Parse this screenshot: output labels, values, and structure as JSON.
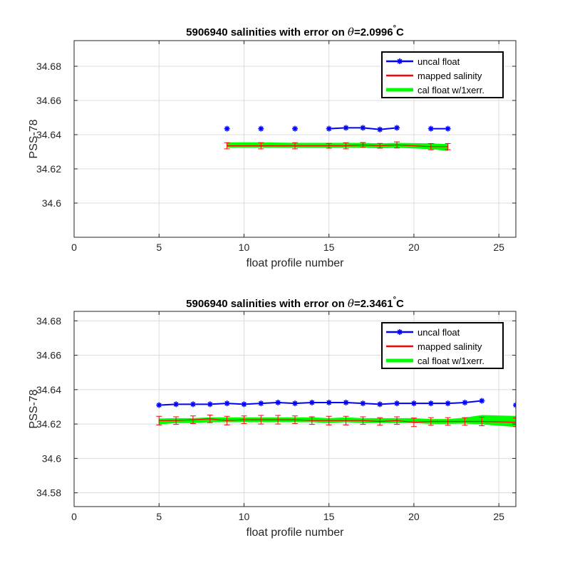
{
  "chart_data": [
    {
      "type": "line",
      "title_prefix": "5906940 salinities with error on ",
      "title_theta": "θ",
      "title_value": "=2.0996",
      "title_degree": "°",
      "title_unit": "C",
      "xlabel": "float profile number",
      "ylabel": "PSS-78",
      "xlim": [
        0,
        26
      ],
      "ylim": [
        34.58,
        34.695
      ],
      "xticks": [
        0,
        5,
        10,
        15,
        20,
        25
      ],
      "yticks": [
        34.6,
        34.62,
        34.64,
        34.66,
        34.68
      ],
      "ytick_labels": [
        "34.6",
        "34.62",
        "34.64",
        "34.66",
        "34.68"
      ],
      "grid": true,
      "legend_position": "top-right",
      "series": [
        {
          "name": "uncal float",
          "color": "#0000ff",
          "marker": "asterisk",
          "x": [
            9,
            11,
            13,
            15,
            16,
            17,
            18,
            19,
            21,
            22
          ],
          "y": [
            34.6435,
            34.6435,
            34.6435,
            34.6435,
            34.644,
            34.644,
            34.643,
            34.644,
            34.6435,
            34.6435
          ],
          "connect": [
            false,
            false,
            false,
            true,
            true,
            true,
            true,
            false,
            true
          ]
        },
        {
          "name": "mapped salinity",
          "color": "#ff0000",
          "x": [
            9,
            11,
            13,
            15,
            16,
            17,
            18,
            19,
            21,
            22
          ],
          "y": [
            34.6335,
            34.6335,
            34.6335,
            34.6335,
            34.6335,
            34.634,
            34.6335,
            34.634,
            34.633,
            34.633
          ],
          "err": [
            0.0018,
            0.0018,
            0.0018,
            0.0014,
            0.0018,
            0.0014,
            0.0014,
            0.0018,
            0.0018,
            0.0018
          ]
        },
        {
          "name": "cal float w/1xerr.",
          "color": "#00ff00",
          "x": [
            9,
            11,
            13,
            15,
            16,
            17,
            18,
            19,
            21,
            22
          ],
          "y": [
            34.634,
            34.634,
            34.6338,
            34.6338,
            34.6338,
            34.6338,
            34.6335,
            34.6338,
            34.6332,
            34.6325
          ],
          "err": [
            0.0013,
            0.0013,
            0.0012,
            0.0012,
            0.0012,
            0.0012,
            0.0012,
            0.0012,
            0.0015,
            0.0018
          ]
        }
      ]
    },
    {
      "type": "line",
      "title_prefix": "5906940 salinities with error on ",
      "title_theta": "θ",
      "title_value": "=2.3461",
      "title_degree": "°",
      "title_unit": "C",
      "xlabel": "float profile number",
      "ylabel": "PSS-78",
      "xlim": [
        0,
        26
      ],
      "ylim": [
        34.572,
        34.6855
      ],
      "xticks": [
        0,
        5,
        10,
        15,
        20,
        25
      ],
      "yticks": [
        34.58,
        34.6,
        34.62,
        34.64,
        34.66,
        34.68
      ],
      "ytick_labels": [
        "34.58",
        "34.6",
        "34.62",
        "34.64",
        "34.66",
        "34.68"
      ],
      "grid": true,
      "legend_position": "top-right",
      "series": [
        {
          "name": "uncal float",
          "color": "#0000ff",
          "marker": "asterisk",
          "x": [
            5,
            6,
            7,
            8,
            9,
            10,
            11,
            12,
            13,
            14,
            15,
            16,
            17,
            18,
            19,
            20,
            21,
            22,
            23,
            24,
            26
          ],
          "y": [
            34.631,
            34.6315,
            34.6315,
            34.6315,
            34.632,
            34.6315,
            34.632,
            34.6325,
            34.632,
            34.6325,
            34.6325,
            34.6325,
            34.632,
            34.6315,
            34.632,
            34.632,
            34.632,
            34.632,
            34.6325,
            34.6335,
            34.631
          ],
          "connect": [
            true,
            true,
            true,
            true,
            true,
            true,
            true,
            true,
            true,
            true,
            true,
            true,
            true,
            true,
            true,
            true,
            true,
            true,
            true,
            false
          ]
        },
        {
          "name": "mapped salinity",
          "color": "#ff0000",
          "x": [
            5,
            6,
            7,
            8,
            9,
            10,
            11,
            12,
            13,
            14,
            15,
            16,
            17,
            18,
            19,
            20,
            21,
            22,
            23,
            24,
            26
          ],
          "y": [
            34.622,
            34.622,
            34.6225,
            34.623,
            34.622,
            34.6225,
            34.6225,
            34.6225,
            34.6225,
            34.622,
            34.622,
            34.622,
            34.622,
            34.6215,
            34.622,
            34.621,
            34.6215,
            34.6215,
            34.6215,
            34.6215,
            34.621
          ],
          "err": [
            0.0025,
            0.0022,
            0.0022,
            0.0022,
            0.0025,
            0.0022,
            0.0025,
            0.0025,
            0.0022,
            0.0022,
            0.0025,
            0.0025,
            0.0022,
            0.0022,
            0.0022,
            0.0025,
            0.0022,
            0.0022,
            0.0022,
            0.0025,
            0.0025
          ]
        },
        {
          "name": "cal float w/1xerr.",
          "color": "#00ff00",
          "x": [
            5,
            6,
            7,
            8,
            9,
            10,
            11,
            12,
            13,
            14,
            15,
            16,
            17,
            18,
            19,
            20,
            21,
            22,
            23,
            24,
            26
          ],
          "y": [
            34.6215,
            34.622,
            34.622,
            34.6225,
            34.6225,
            34.6225,
            34.6225,
            34.6225,
            34.6225,
            34.6225,
            34.622,
            34.6225,
            34.622,
            34.622,
            34.622,
            34.622,
            34.6215,
            34.6215,
            34.622,
            34.6225,
            34.6215
          ],
          "err": [
            0.0015,
            0.0012,
            0.0012,
            0.0012,
            0.0012,
            0.0012,
            0.0012,
            0.0012,
            0.0012,
            0.0012,
            0.0012,
            0.0012,
            0.0012,
            0.0012,
            0.0012,
            0.0012,
            0.0012,
            0.0012,
            0.0015,
            0.0025,
            0.003
          ]
        }
      ]
    }
  ]
}
